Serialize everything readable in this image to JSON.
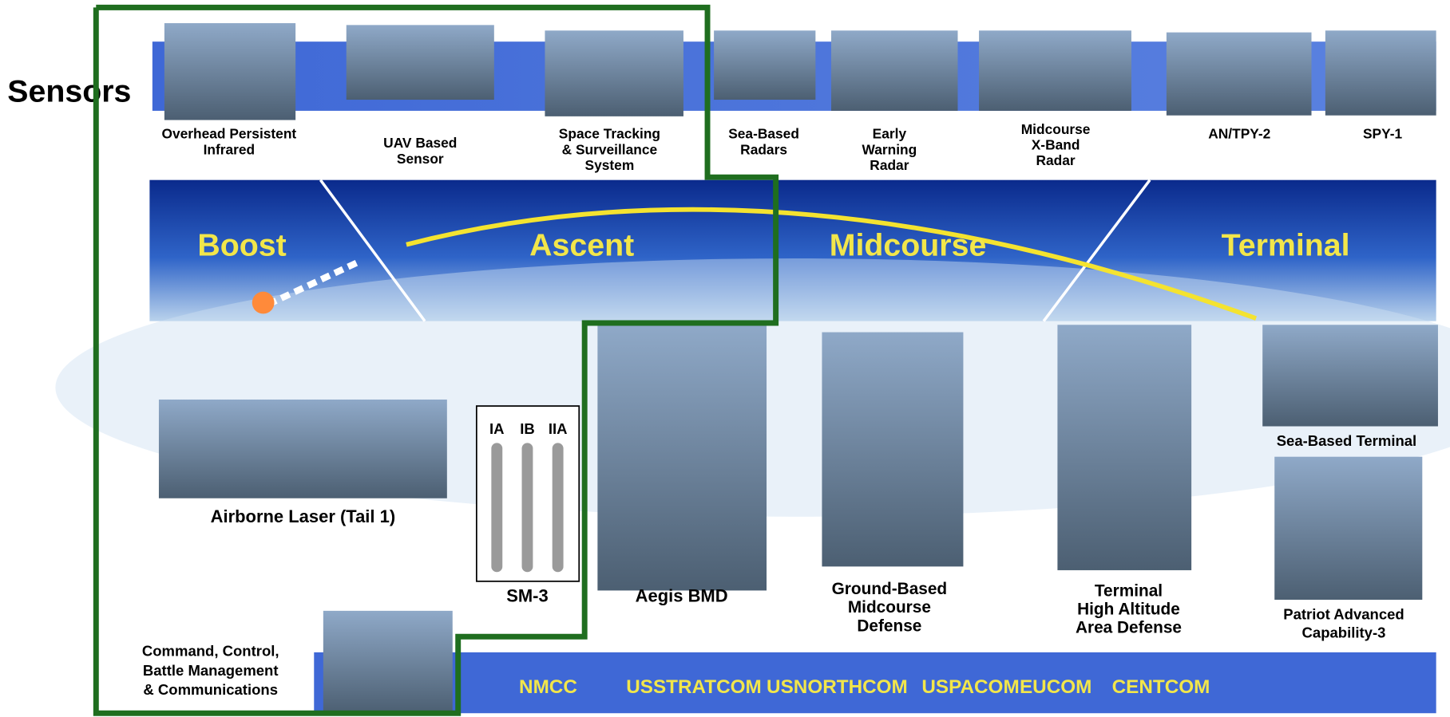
{
  "title": "Sensors",
  "sensors": [
    {
      "label": [
        "Overhead Persistent",
        "Infrared"
      ]
    },
    {
      "label": [
        "UAV Based",
        "Sensor"
      ]
    },
    {
      "label": [
        "Space Tracking",
        "& Surveillance",
        "System"
      ]
    },
    {
      "label": [
        "Sea-Based",
        "Radars"
      ]
    },
    {
      "label": [
        "Early",
        "Warning",
        "Radar"
      ]
    },
    {
      "label": [
        "Midcourse",
        "X-Band",
        "Radar"
      ]
    },
    {
      "label": [
        "AN/TPY-2"
      ]
    },
    {
      "label": [
        "SPY-1"
      ]
    }
  ],
  "phases": [
    "Boost",
    "Ascent",
    "Midcourse",
    "Terminal"
  ],
  "weapons": [
    {
      "label": [
        "Airborne Laser (Tail 1)"
      ]
    },
    {
      "label": [
        "SM-3"
      ],
      "variants": [
        "IA",
        "IB",
        "IIA"
      ]
    },
    {
      "label": [
        "Aegis BMD"
      ]
    },
    {
      "label": [
        "Ground-Based",
        "Midcourse",
        "Defense"
      ]
    },
    {
      "label": [
        "Terminal",
        "High Altitude",
        "Area Defense"
      ]
    },
    {
      "label": [
        "Sea-Based Terminal"
      ]
    },
    {
      "label": [
        "Patriot Advanced",
        "Capability-3"
      ]
    }
  ],
  "c2bmc": {
    "label": [
      "Command, Control,",
      "Battle Management",
      "& Communications"
    ],
    "commands": [
      "NMCC",
      "USSTRATCOM",
      "USNORTHCOM",
      "USPACOM",
      "EUCOM",
      "CENTCOM"
    ]
  }
}
